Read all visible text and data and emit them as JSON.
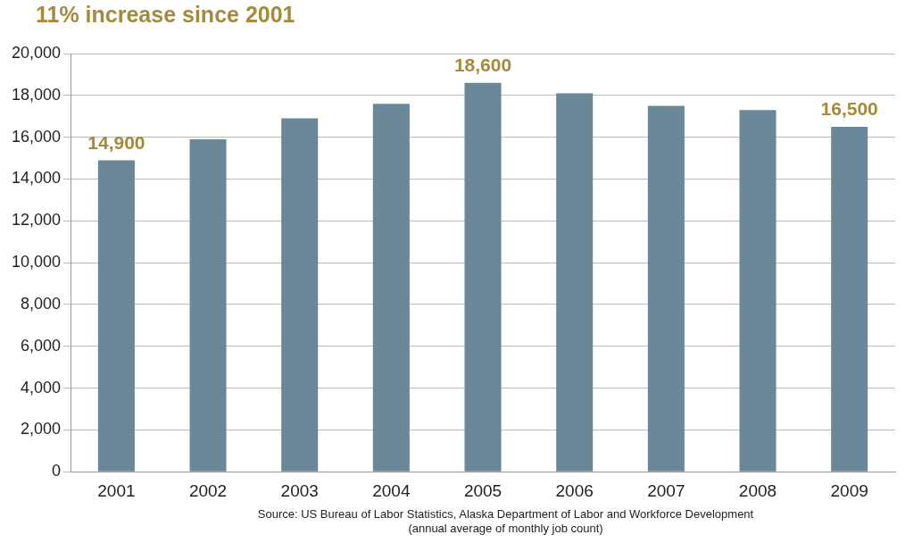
{
  "chart_data": {
    "type": "bar",
    "title": "11% increase since 2001",
    "categories": [
      "2001",
      "2002",
      "2003",
      "2004",
      "2005",
      "2006",
      "2007",
      "2008",
      "2009"
    ],
    "values": [
      14900,
      15900,
      16900,
      17600,
      18600,
      18100,
      17500,
      17300,
      16500
    ],
    "value_labels": [
      "14,900",
      null,
      null,
      null,
      "18,600",
      null,
      null,
      null,
      "16,500"
    ],
    "color": "#6a8898",
    "ylim": [
      0,
      20000
    ],
    "yticks": [
      {
        "value": 0,
        "label": "0"
      },
      {
        "value": 2000,
        "label": "2,000"
      },
      {
        "value": 4000,
        "label": "4,000"
      },
      {
        "value": 6000,
        "label": "6,000"
      },
      {
        "value": 8000,
        "label": "8,000"
      },
      {
        "value": 10000,
        "label": "10,000"
      },
      {
        "value": 12000,
        "label": "12,000"
      },
      {
        "value": 14000,
        "label": "14,000"
      },
      {
        "value": 16000,
        "label": "16,000"
      },
      {
        "value": 18000,
        "label": "18,000"
      },
      {
        "value": 20000,
        "label": "20,000"
      }
    ],
    "grid": "y",
    "annotations": [
      "Source: US Bureau of Labor Statistics, Alaska Department of Labor and Workforce Development",
      "(annual average of monthly job count)"
    ]
  }
}
